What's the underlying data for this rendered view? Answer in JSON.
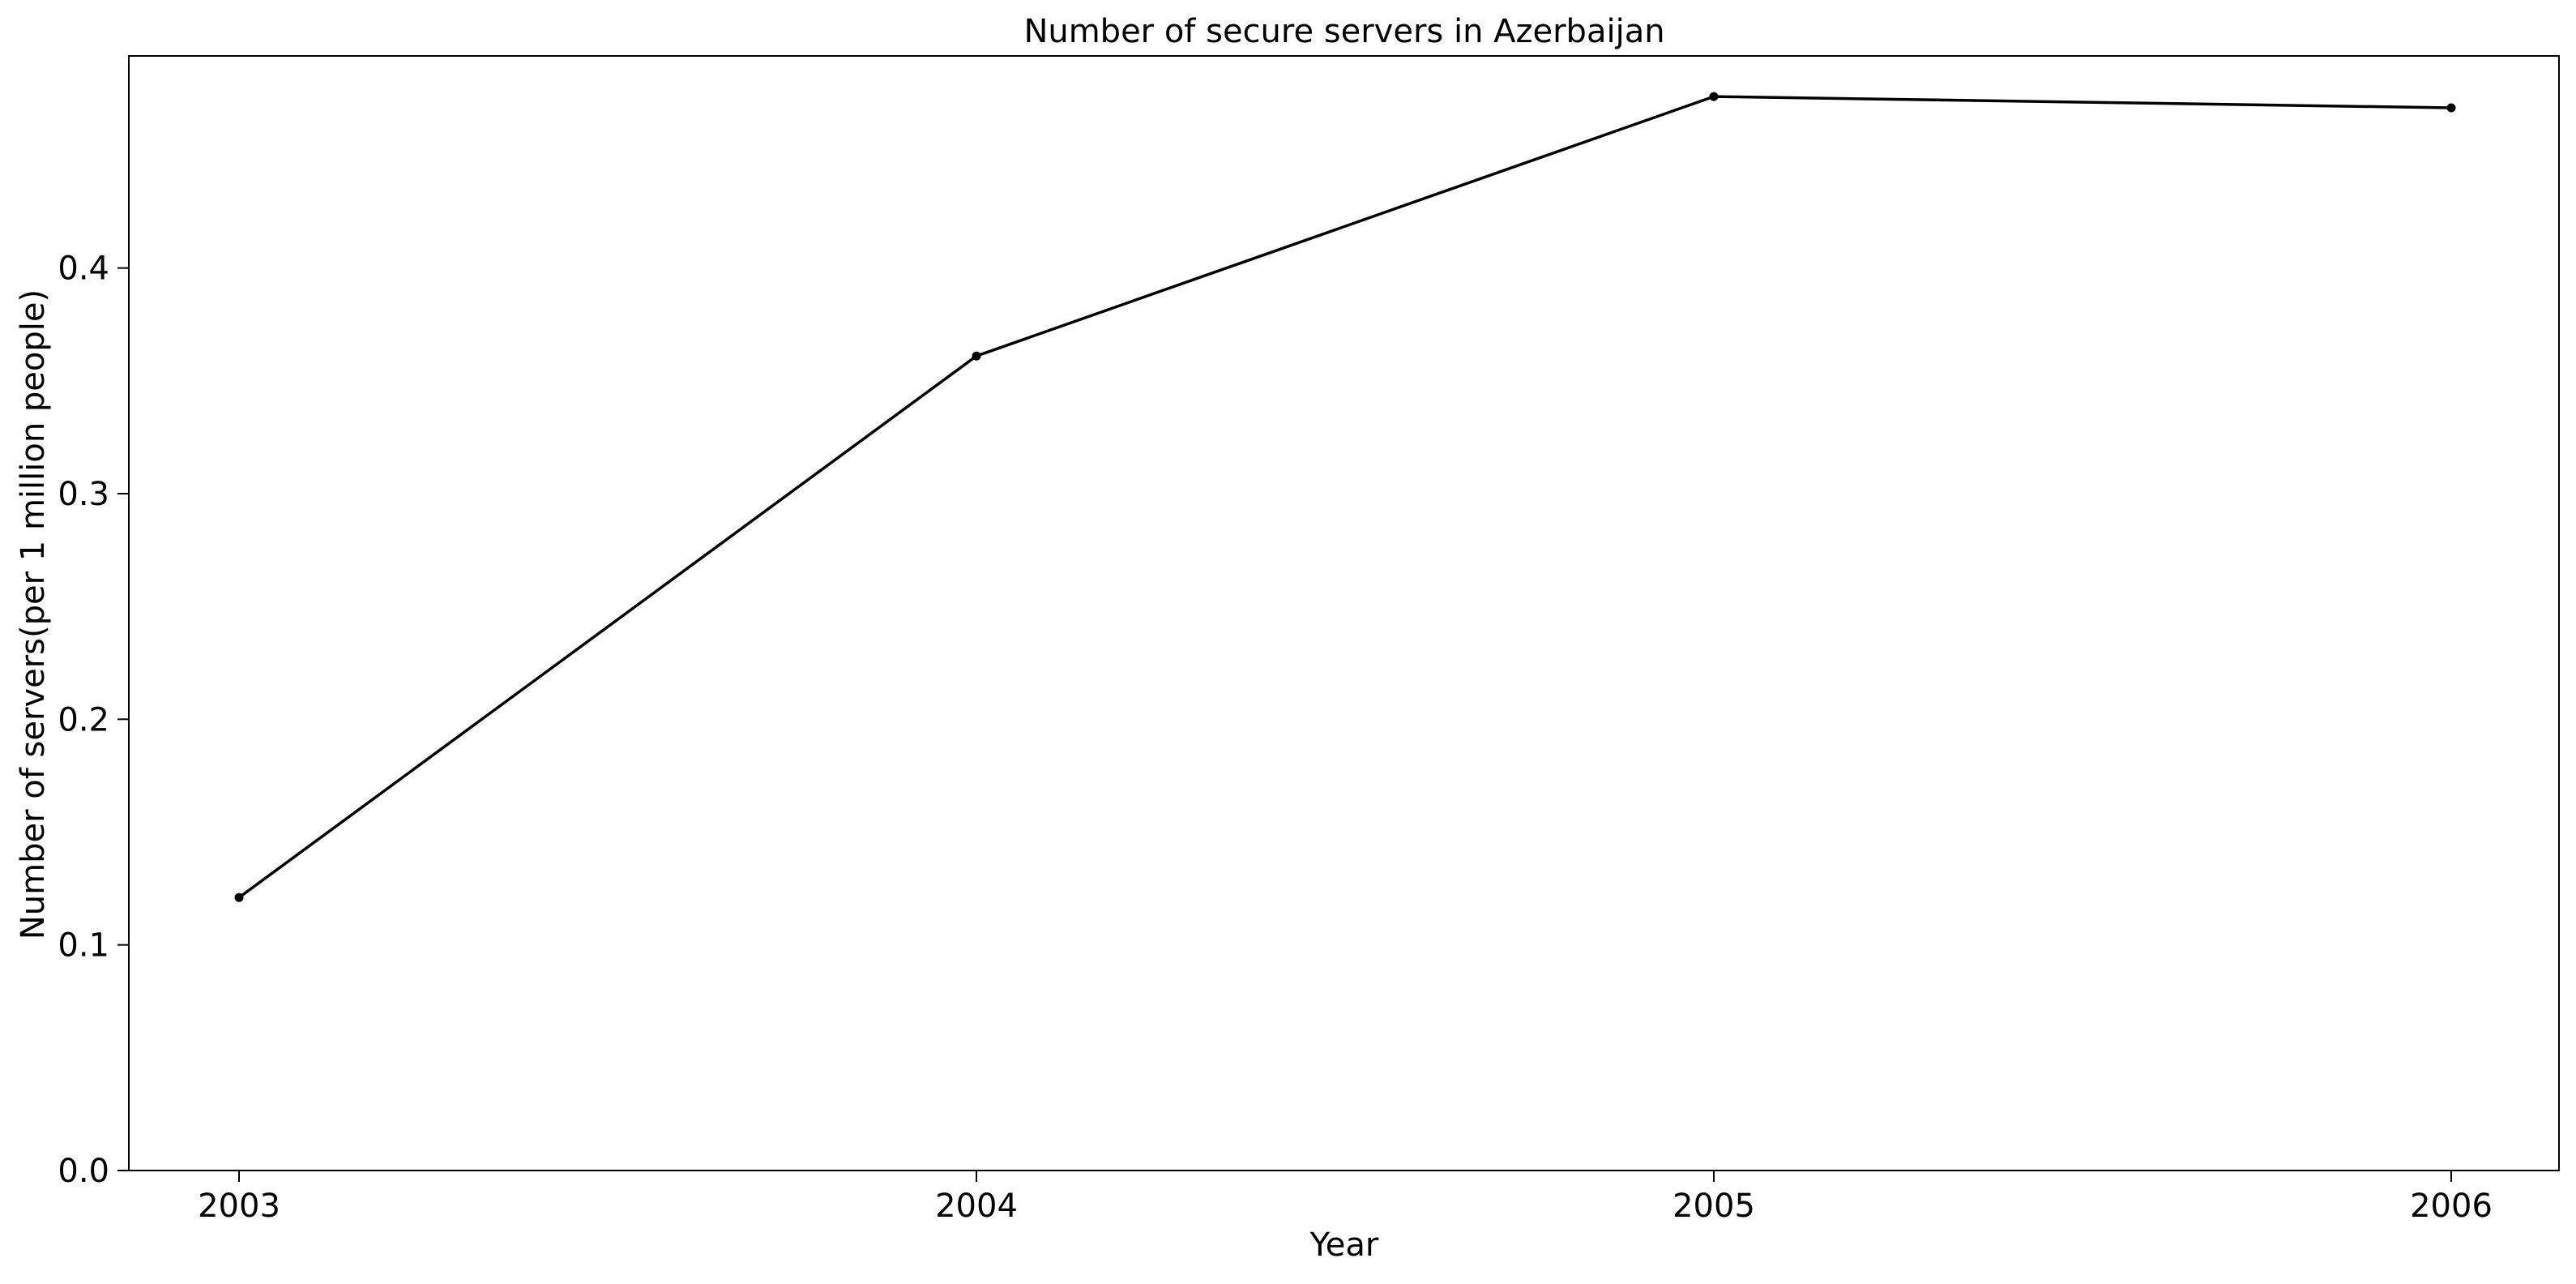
{
  "chart_data": {
    "type": "line",
    "title": "Number of secure servers in Azerbaijan",
    "xlabel": "Year",
    "ylabel": "Number of servers(per 1 million people)",
    "x": [
      "2003",
      "2004",
      "2005",
      "2006"
    ],
    "series": [
      {
        "values": [
          0.121,
          0.361,
          0.476,
          0.471
        ]
      }
    ],
    "ylim": [
      0,
      0.494
    ],
    "yticks": [
      0.0,
      0.1,
      0.2,
      0.3,
      0.4
    ],
    "ytick_labels": [
      "0.0",
      "0.1",
      "0.2",
      "0.3",
      "0.4"
    ],
    "grid": false,
    "legend": "none",
    "colors": {
      "line": "#000000",
      "marker": "#000000"
    }
  }
}
